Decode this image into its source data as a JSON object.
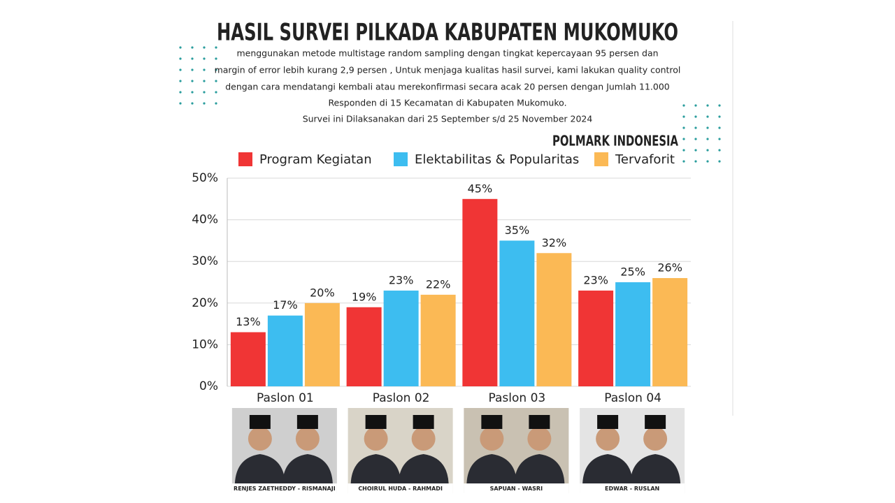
{
  "chart_data": {
    "type": "bar",
    "title": "HASIL SURVEI PILKADA KABUPATEN MUKOMUKO",
    "subtitle": [
      "menggunakan metode multistage random sampling dengan tingkat kepercayaan 95 persen dan",
      "margin of error lebih kurang 2,9 persen , Untuk menjaga kualitas hasil survei, kami lakukan quality control",
      "dengan cara mendatangi kembali atau merekonfirmasi secara acak 20 persen dengan Jumlah 11.000",
      "Responden di 15 Kecamatan di Kabupaten Mukomuko.",
      "Survei ini Dilaksanakan dari 25 September s/d 25 November 2024"
    ],
    "source": "POLMARK INDONESIA",
    "categories": [
      "Paslon 01",
      "Paslon 02",
      "Paslon 03",
      "Paslon 04"
    ],
    "photo_captions": [
      "RENJES ZAETHEDDY - RISMANAJI",
      "CHOIRUL HUDA - RAHMADI",
      "SAPUAN - WASRI",
      "EDWAR - RUSLAN"
    ],
    "series": [
      {
        "name": "Program Kegiatan",
        "color": "#f03535",
        "values": [
          13,
          19,
          45,
          23
        ],
        "value_labels": [
          "13%",
          "19%",
          "45%",
          "23%"
        ]
      },
      {
        "name": "Elektabilitas & Popularitas",
        "color": "#3dbdf0",
        "values": [
          17,
          23,
          35,
          25
        ],
        "value_labels": [
          "17%",
          "23%",
          "35%",
          "25%"
        ]
      },
      {
        "name": "Tervaforit",
        "color": "#fbb955",
        "values": [
          20,
          22,
          32,
          26
        ],
        "value_labels": [
          "20%",
          "22%",
          "32%",
          "26%"
        ]
      }
    ],
    "ylim": [
      0,
      50
    ],
    "yticks": [
      {
        "value": 0,
        "label": "0%"
      },
      {
        "value": 10,
        "label": "10%"
      },
      {
        "value": 20,
        "label": "20%"
      },
      {
        "value": 30,
        "label": "30%"
      },
      {
        "value": 40,
        "label": "40%"
      },
      {
        "value": 50,
        "label": "50%"
      }
    ],
    "grid": true
  }
}
